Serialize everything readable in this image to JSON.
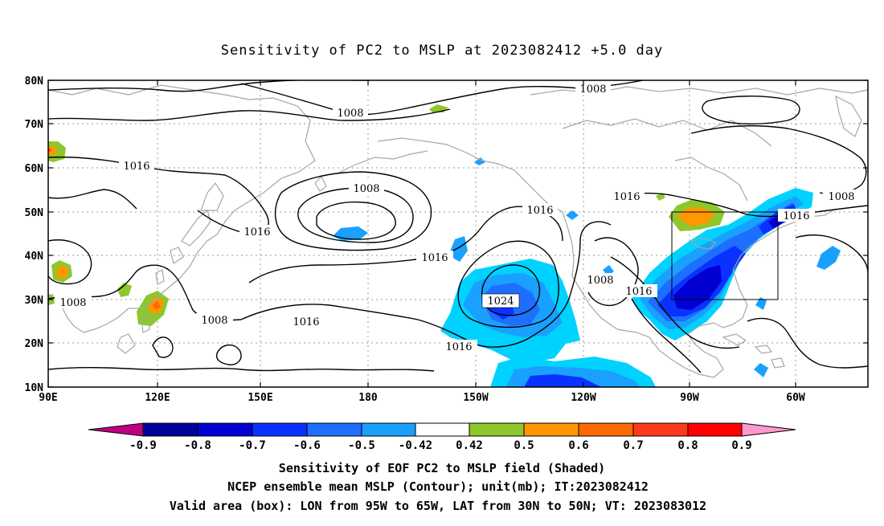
{
  "title": "Sensitivity of PC2 to MSLP at 2023082412 +5.0 day",
  "lat_labels": [
    "80N",
    "70N",
    "60N",
    "50N",
    "40N",
    "30N",
    "20N",
    "10N"
  ],
  "lon_labels": [
    "90E",
    "120E",
    "150E",
    "180",
    "150W",
    "120W",
    "90W",
    "60W"
  ],
  "contour_labels": [
    "1008",
    "1008",
    "1016",
    "1008",
    "1016",
    "1016",
    "1016",
    "1024",
    "1008",
    "1016",
    "1016",
    "1008",
    "1008",
    "1016",
    "1008",
    "1016",
    "1016"
  ],
  "colorbar": {
    "ticks": [
      "-0.9",
      "-0.8",
      "-0.7",
      "-0.6",
      "-0.5",
      "-0.42",
      "0.42",
      "0.5",
      "0.6",
      "0.7",
      "0.8",
      "0.9"
    ],
    "colors": [
      "#bd0081",
      "#00009c",
      "#0000d2",
      "#0a32ff",
      "#1e6eff",
      "#1aa0ff",
      "#00d2ff",
      "#ffffff",
      "#8ec72d",
      "#ff9800",
      "#ff6a00",
      "#ff3a1a",
      "#ff0000",
      "#ff99cc"
    ]
  },
  "caption": [
    "Sensitivity of EOF PC2 to MSLP field (Shaded)",
    "NCEP ensemble mean MSLP (Contour); unit(mb); IT:2023082412",
    "Valid area (box): LON from 95W to 65W, LAT from 30N to 50N; VT: 2023083012"
  ]
}
